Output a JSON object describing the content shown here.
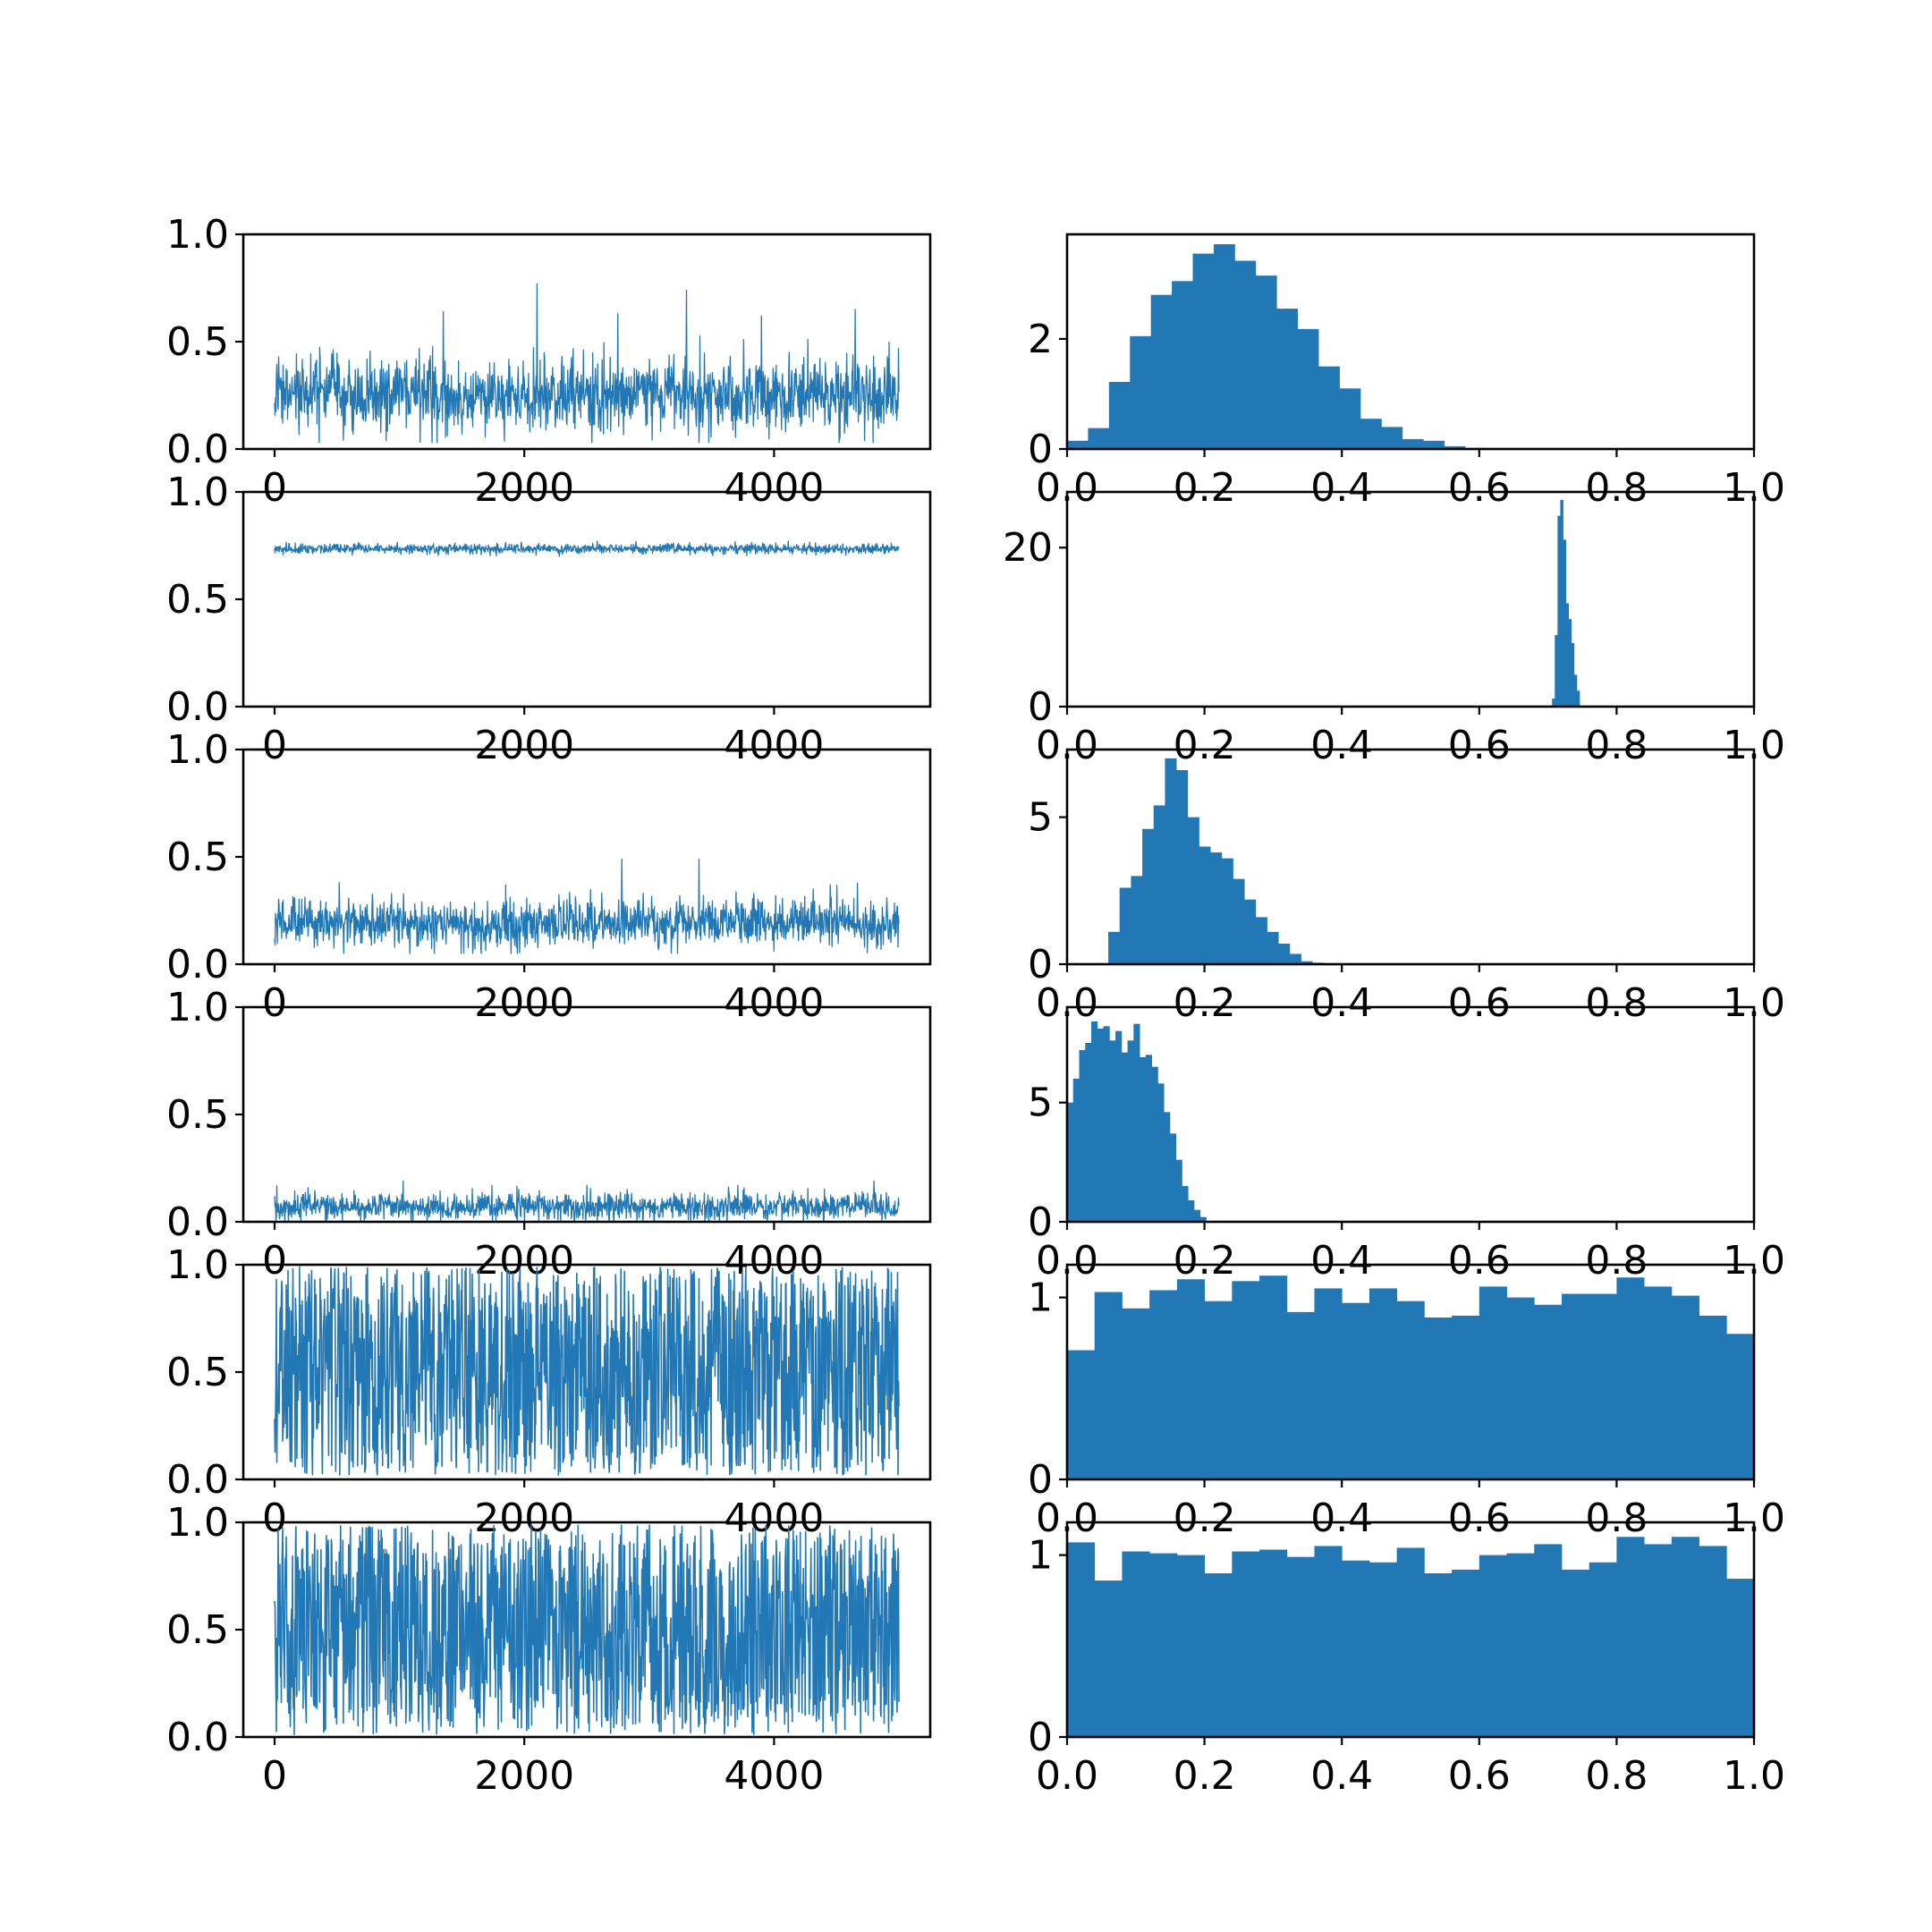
{
  "colors": {
    "series": "#2178b5",
    "axes": "#000000",
    "background": "#ffffff"
  },
  "chart_data": [
    {
      "type": "line",
      "row": 1,
      "kind": "trace",
      "x_range": [
        0,
        5000
      ],
      "ylim": [
        0,
        1
      ],
      "x_ticks": [
        "0",
        "2000",
        "4000"
      ],
      "y_ticks": [
        "0.0",
        "0.5",
        "1.0"
      ],
      "trace": {
        "mean": 0.25,
        "sd": 0.085,
        "min": 0.03,
        "max": 0.6,
        "spikes": [
          [
            2100,
            0.77
          ],
          [
            3300,
            0.74
          ],
          [
            1350,
            0.64
          ],
          [
            4650,
            0.65
          ],
          [
            2750,
            0.63
          ],
          [
            3900,
            0.62
          ]
        ]
      }
    },
    {
      "type": "bar",
      "row": 1,
      "kind": "histogram",
      "xlim": [
        0,
        1
      ],
      "ylim": [
        0,
        3.9
      ],
      "x_ticks": [
        "0.0",
        "0.2",
        "0.4",
        "0.6",
        "0.8",
        "1.0"
      ],
      "y_ticks": [
        "0",
        "2"
      ],
      "bin_edges_start": 0,
      "bin_width": 0.0305,
      "values": [
        0.15,
        0.38,
        1.22,
        2.05,
        2.8,
        3.05,
        3.55,
        3.72,
        3.42,
        3.15,
        2.55,
        2.18,
        1.5,
        1.1,
        0.55,
        0.4,
        0.18,
        0.15,
        0.05,
        0.02
      ]
    },
    {
      "type": "line",
      "row": 2,
      "kind": "trace",
      "x_range": [
        0,
        5000
      ],
      "ylim": [
        0,
        1
      ],
      "x_ticks": [
        "0",
        "2000",
        "4000"
      ],
      "y_ticks": [
        "0.0",
        "0.5",
        "1.0"
      ],
      "trace": {
        "mean": 0.735,
        "sd": 0.012,
        "min": 0.7,
        "max": 0.78,
        "spikes": []
      }
    },
    {
      "type": "bar",
      "row": 2,
      "kind": "histogram",
      "xlim": [
        0,
        1
      ],
      "ylim": [
        0,
        27
      ],
      "x_ticks": [
        "0.0",
        "0.2",
        "0.4",
        "0.6",
        "0.8",
        "1.0"
      ],
      "y_ticks": [
        "0",
        "20"
      ],
      "bin_edges_start": 0.706,
      "bin_width": 0.004,
      "values": [
        1,
        9,
        24,
        26,
        21,
        13,
        11,
        8,
        4,
        2
      ]
    },
    {
      "type": "line",
      "row": 3,
      "kind": "trace",
      "x_range": [
        0,
        5000
      ],
      "ylim": [
        0,
        1
      ],
      "x_ticks": [
        "0",
        "2000",
        "4000"
      ],
      "y_ticks": [
        "0.0",
        "0.5",
        "1.0"
      ],
      "trace": {
        "mean": 0.195,
        "sd": 0.055,
        "min": 0.05,
        "max": 0.38,
        "spikes": [
          [
            2780,
            0.49
          ],
          [
            3400,
            0.49
          ],
          [
            520,
            0.38
          ],
          [
            1850,
            0.37
          ],
          [
            4450,
            0.37
          ]
        ]
      }
    },
    {
      "type": "bar",
      "row": 3,
      "kind": "histogram",
      "xlim": [
        0,
        1
      ],
      "ylim": [
        0,
        7.3
      ],
      "x_ticks": [
        "0.0",
        "0.2",
        "0.4",
        "0.6",
        "0.8",
        "1.0"
      ],
      "y_ticks": [
        "0",
        "5"
      ],
      "bin_edges_start": 0.06,
      "bin_width": 0.0165,
      "values": [
        1.1,
        2.6,
        3.0,
        4.6,
        5.4,
        7.0,
        6.6,
        5.0,
        4.0,
        3.8,
        3.6,
        2.9,
        2.2,
        1.6,
        1.1,
        0.7,
        0.35,
        0.1,
        0.05
      ]
    },
    {
      "type": "line",
      "row": 4,
      "kind": "trace",
      "x_range": [
        0,
        5000
      ],
      "ylim": [
        0,
        1
      ],
      "x_ticks": [
        "0",
        "2000",
        "4000"
      ],
      "y_ticks": [
        "0.0",
        "0.5",
        "1.0"
      ],
      "trace": {
        "mean": 0.07,
        "sd": 0.032,
        "min": 0.0,
        "max": 0.17,
        "spikes": [
          [
            1030,
            0.19
          ],
          [
            4800,
            0.19
          ],
          [
            2500,
            0.17
          ]
        ]
      }
    },
    {
      "type": "bar",
      "row": 4,
      "kind": "histogram",
      "xlim": [
        0,
        1
      ],
      "ylim": [
        0,
        9
      ],
      "x_ticks": [
        "0.0",
        "0.2",
        "0.4",
        "0.6",
        "0.8",
        "1.0"
      ],
      "y_ticks": [
        "0",
        "5"
      ],
      "bin_edges_start": 0,
      "bin_width": 0.0088,
      "values": [
        5.0,
        6.0,
        7.2,
        7.5,
        8.4,
        8.1,
        8.2,
        7.6,
        8.0,
        7.1,
        7.6,
        8.3,
        6.9,
        7.0,
        6.5,
        5.8,
        4.6,
        3.7,
        2.6,
        1.5,
        0.9,
        0.5,
        0.2
      ]
    },
    {
      "type": "line",
      "row": 5,
      "kind": "trace",
      "x_range": [
        0,
        5000
      ],
      "ylim": [
        0,
        1
      ],
      "x_ticks": [
        "0",
        "2000",
        "4000"
      ],
      "y_ticks": [
        "0.0",
        "0.5",
        "1.0"
      ],
      "trace": {
        "mean": 0.5,
        "sd": 0.29,
        "min": 0.02,
        "max": 0.99,
        "spikes": []
      }
    },
    {
      "type": "bar",
      "row": 5,
      "kind": "histogram",
      "xlim": [
        0,
        1
      ],
      "ylim": [
        0,
        1.18
      ],
      "x_ticks": [
        "0.0",
        "0.2",
        "0.4",
        "0.6",
        "0.8",
        "1.0"
      ],
      "y_ticks": [
        "0",
        "1"
      ],
      "bin_edges_start": 0,
      "bin_width": 0.04,
      "values": [
        0.71,
        1.03,
        0.94,
        1.04,
        1.1,
        0.98,
        1.09,
        1.12,
        0.92,
        1.05,
        0.97,
        1.05,
        0.98,
        0.89,
        0.9,
        1.06,
        1.0,
        0.96,
        1.02,
        1.02,
        1.11,
        1.06,
        1.01,
        0.9,
        0.8
      ]
    },
    {
      "type": "line",
      "row": 6,
      "kind": "trace",
      "x_range": [
        0,
        5000
      ],
      "ylim": [
        0,
        1
      ],
      "x_ticks": [
        "0",
        "2000",
        "4000"
      ],
      "y_ticks": [
        "0.0",
        "0.5",
        "1.0"
      ],
      "trace": {
        "mean": 0.5,
        "sd": 0.29,
        "min": 0.01,
        "max": 0.99,
        "spikes": []
      }
    },
    {
      "type": "bar",
      "row": 6,
      "kind": "histogram",
      "xlim": [
        0,
        1
      ],
      "ylim": [
        0,
        1.18
      ],
      "x_ticks": [
        "0.0",
        "0.2",
        "0.4",
        "0.6",
        "0.8",
        "1.0"
      ],
      "y_ticks": [
        "0",
        "1"
      ],
      "bin_edges_start": 0,
      "bin_width": 0.04,
      "values": [
        1.07,
        0.86,
        1.02,
        1.01,
        1.0,
        0.9,
        1.02,
        1.03,
        0.99,
        1.05,
        0.97,
        0.96,
        1.04,
        0.9,
        0.92,
        1.0,
        1.01,
        1.06,
        0.92,
        0.96,
        1.1,
        1.06,
        1.1,
        1.05,
        0.87
      ]
    }
  ]
}
